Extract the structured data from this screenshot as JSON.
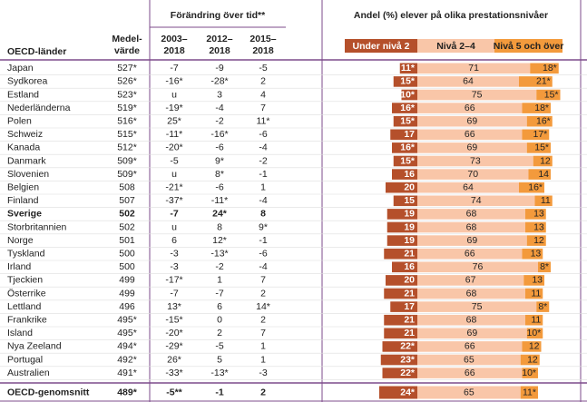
{
  "header": {
    "group_title": "Förändring över tid**",
    "levels_title": "Andel (%) elever på olika prestationsnivåer",
    "country": "OECD-länder",
    "mean": [
      "Medel-",
      "värde"
    ],
    "periods": [
      [
        "2003–",
        "2018"
      ],
      [
        "2012–",
        "2018"
      ],
      [
        "2015–",
        "2018"
      ]
    ],
    "legend": [
      "Under nivå 2",
      "Nivå 2–4",
      "Nivå 5 och över"
    ],
    "colors": [
      "#b5502b",
      "#f9c6a8",
      "#f39a3c"
    ]
  },
  "rows": [
    {
      "cells": [
        "Japan",
        "527*",
        "-7",
        "-9",
        "-5",
        {
          "value": 11,
          "label": "11*"
        },
        71,
        {
          "value": 18,
          "label": "18*"
        }
      ]
    },
    {
      "cells": [
        "Sydkorea",
        "526*",
        "-16*",
        "-28*",
        "2",
        {
          "value": 15,
          "label": "15*"
        },
        64,
        {
          "value": 21,
          "label": "21*"
        }
      ]
    },
    {
      "cells": [
        "Estland",
        "523*",
        "u",
        "3",
        "4",
        {
          "value": 10,
          "label": "10*"
        },
        75,
        {
          "value": 15,
          "label": "15*"
        }
      ]
    },
    {
      "cells": [
        "Nederländerna",
        "519*",
        "-19*",
        "-4",
        "7",
        {
          "value": 16,
          "label": "16*"
        },
        66,
        {
          "value": 18,
          "label": "18*"
        }
      ]
    },
    {
      "cells": [
        "Polen",
        "516*",
        "25*",
        "-2",
        "11*",
        {
          "value": 15,
          "label": "15*"
        },
        69,
        {
          "value": 16,
          "label": "16*"
        }
      ]
    },
    {
      "cells": [
        "Schweiz",
        "515*",
        "-11*",
        "-16*",
        "-6",
        17,
        66,
        {
          "value": 17,
          "label": "17*"
        }
      ]
    },
    {
      "cells": [
        "Kanada",
        "512*",
        "-20*",
        "-6",
        "-4",
        {
          "value": 16,
          "label": "16*"
        },
        69,
        {
          "value": 15,
          "label": "15*"
        }
      ]
    },
    {
      "cells": [
        "Danmark",
        "509*",
        "-5",
        "9*",
        "-2",
        {
          "value": 15,
          "label": "15*"
        },
        73,
        12
      ]
    },
    {
      "cells": [
        "Slovenien",
        "509*",
        "u",
        "8*",
        "-1",
        16,
        70,
        14
      ]
    },
    {
      "cells": [
        "Belgien",
        "508",
        "-21*",
        "-6",
        "1",
        20,
        64,
        {
          "value": 16,
          "label": "16*"
        }
      ]
    },
    {
      "cells": [
        "Finland",
        "507",
        "-37*",
        "-11*",
        "-4",
        15,
        74,
        11
      ]
    },
    {
      "cells": [
        "Sverige",
        "502",
        "-7",
        "24*",
        "8",
        19,
        68,
        13
      ],
      "bold": true
    },
    {
      "cells": [
        "Storbritannien",
        "502",
        "u",
        "8",
        "9*",
        19,
        68,
        13
      ]
    },
    {
      "cells": [
        "Norge",
        "501",
        "6",
        "12*",
        "-1",
        19,
        69,
        12
      ]
    },
    {
      "cells": [
        "Tyskland",
        "500",
        "-3",
        "-13*",
        "-6",
        21,
        66,
        13
      ]
    },
    {
      "cells": [
        "Irland",
        "500",
        "-3",
        "-2",
        "-4",
        16,
        76,
        {
          "value": 8,
          "label": "8*"
        }
      ]
    },
    {
      "cells": [
        "Tjeckien",
        "499",
        "-17*",
        "1",
        "7",
        20,
        67,
        13
      ]
    },
    {
      "cells": [
        "Österrike",
        "499",
        "-7",
        "-7",
        "2",
        21,
        68,
        11
      ]
    },
    {
      "cells": [
        "Lettland",
        "496",
        "13*",
        "6",
        "14*",
        17,
        75,
        {
          "value": 8,
          "label": "8*"
        }
      ]
    },
    {
      "cells": [
        "Frankrike",
        "495*",
        "-15*",
        "0",
        "2",
        21,
        68,
        11
      ]
    },
    {
      "cells": [
        "Island",
        "495*",
        "-20*",
        "2",
        "7",
        21,
        69,
        {
          "value": 10,
          "label": "10*"
        }
      ]
    },
    {
      "cells": [
        "Nya Zeeland",
        "494*",
        "-29*",
        "-5",
        "1",
        {
          "value": 22,
          "label": "22*"
        },
        66,
        12
      ]
    },
    {
      "cells": [
        "Portugal",
        "492*",
        "26*",
        "5",
        "1",
        {
          "value": 23,
          "label": "23*"
        },
        65,
        12
      ]
    },
    {
      "cells": [
        "Australien",
        "491*",
        "-33*",
        "-13*",
        "-3",
        {
          "value": 22,
          "label": "22*"
        },
        66,
        {
          "value": 10,
          "label": "10*"
        }
      ]
    },
    {
      "cells": [
        "OECD-genomsnitt",
        "489*",
        "-5**",
        "-1",
        "2",
        {
          "value": 24,
          "label": "24*"
        },
        65,
        {
          "value": 11,
          "label": "11*"
        }
      ],
      "bold": true,
      "total": true
    }
  ]
}
